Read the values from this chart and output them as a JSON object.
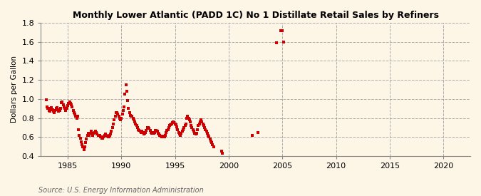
{
  "title": "Monthly Lower Atlantic (PADD 1C) No 1 Distillate Retail Sales by Refiners",
  "ylabel": "Dollars per Gallon",
  "source": "Source: U.S. Energy Information Administration",
  "background_color": "#fdf5e6",
  "plot_background_color": "#fdf5e6",
  "marker_color": "#cc0000",
  "xlim": [
    1982.5,
    2022.5
  ],
  "ylim": [
    0.4,
    1.8
  ],
  "yticks": [
    0.4,
    0.6,
    0.8,
    1.0,
    1.2,
    1.4,
    1.6,
    1.8
  ],
  "xticks": [
    1985,
    1990,
    1995,
    2000,
    2005,
    2010,
    2015,
    2020
  ],
  "data_x": [
    1983.0,
    1983.08,
    1983.17,
    1983.25,
    1983.33,
    1983.42,
    1983.5,
    1983.58,
    1983.67,
    1983.75,
    1983.83,
    1983.92,
    1984.0,
    1984.08,
    1984.17,
    1984.25,
    1984.33,
    1984.42,
    1984.5,
    1984.58,
    1984.67,
    1984.75,
    1984.83,
    1984.92,
    1985.0,
    1985.08,
    1985.17,
    1985.25,
    1985.33,
    1985.42,
    1985.5,
    1985.58,
    1985.67,
    1985.75,
    1985.83,
    1985.92,
    1986.0,
    1986.08,
    1986.17,
    1986.25,
    1986.33,
    1986.42,
    1986.5,
    1986.58,
    1986.67,
    1986.75,
    1986.83,
    1986.92,
    1987.0,
    1987.08,
    1987.17,
    1987.25,
    1987.33,
    1987.42,
    1987.5,
    1987.58,
    1987.67,
    1987.75,
    1987.83,
    1987.92,
    1988.0,
    1988.08,
    1988.17,
    1988.25,
    1988.33,
    1988.42,
    1988.5,
    1988.58,
    1988.67,
    1988.75,
    1988.83,
    1988.92,
    1989.0,
    1989.08,
    1989.17,
    1989.25,
    1989.33,
    1989.42,
    1989.5,
    1989.58,
    1989.67,
    1989.75,
    1989.83,
    1989.92,
    1990.0,
    1990.08,
    1990.17,
    1990.25,
    1990.33,
    1990.42,
    1990.5,
    1990.58,
    1990.67,
    1990.75,
    1990.83,
    1990.92,
    1991.0,
    1991.08,
    1991.17,
    1991.25,
    1991.33,
    1991.42,
    1991.5,
    1991.58,
    1991.67,
    1991.75,
    1991.83,
    1991.92,
    1992.0,
    1992.08,
    1992.17,
    1992.25,
    1992.33,
    1992.42,
    1992.5,
    1992.58,
    1992.67,
    1992.75,
    1992.83,
    1992.92,
    1993.0,
    1993.08,
    1993.17,
    1993.25,
    1993.33,
    1993.42,
    1993.5,
    1993.58,
    1993.67,
    1993.75,
    1993.83,
    1993.92,
    1994.0,
    1994.08,
    1994.17,
    1994.25,
    1994.33,
    1994.42,
    1994.5,
    1994.58,
    1994.67,
    1994.75,
    1994.83,
    1994.92,
    1995.0,
    1995.08,
    1995.17,
    1995.25,
    1995.33,
    1995.42,
    1995.5,
    1995.58,
    1995.67,
    1995.75,
    1995.83,
    1995.92,
    1996.0,
    1996.08,
    1996.17,
    1996.25,
    1996.33,
    1996.42,
    1996.5,
    1996.58,
    1996.67,
    1996.75,
    1996.83,
    1996.92,
    1997.0,
    1997.08,
    1997.17,
    1997.25,
    1997.33,
    1997.42,
    1997.5,
    1997.58,
    1997.67,
    1997.75,
    1997.83,
    1997.92,
    1998.0,
    1998.08,
    1998.17,
    1998.25,
    1998.33,
    1998.42,
    1998.5,
    1998.58,
    1999.33,
    1999.42,
    2002.17,
    2002.75,
    2004.42,
    2004.83,
    2005.0,
    2005.08
  ],
  "data_y": [
    0.99,
    0.92,
    0.9,
    0.88,
    0.87,
    0.9,
    0.91,
    0.89,
    0.87,
    0.86,
    0.88,
    0.9,
    0.91,
    0.89,
    0.87,
    0.88,
    0.9,
    0.96,
    0.97,
    0.94,
    0.92,
    0.9,
    0.88,
    0.9,
    0.93,
    0.95,
    0.97,
    0.95,
    0.94,
    0.92,
    0.88,
    0.86,
    0.84,
    0.82,
    0.8,
    0.82,
    0.68,
    0.62,
    0.59,
    0.55,
    0.52,
    0.5,
    0.47,
    0.5,
    0.54,
    0.58,
    0.62,
    0.64,
    0.62,
    0.64,
    0.66,
    0.64,
    0.62,
    0.64,
    0.65,
    0.66,
    0.65,
    0.63,
    0.62,
    0.62,
    0.62,
    0.6,
    0.59,
    0.59,
    0.6,
    0.62,
    0.63,
    0.62,
    0.61,
    0.6,
    0.6,
    0.62,
    0.63,
    0.66,
    0.7,
    0.74,
    0.78,
    0.82,
    0.86,
    0.86,
    0.84,
    0.82,
    0.8,
    0.78,
    0.8,
    0.84,
    0.88,
    0.92,
    1.05,
    1.15,
    1.08,
    0.98,
    0.9,
    0.86,
    0.83,
    0.82,
    0.82,
    0.8,
    0.78,
    0.76,
    0.74,
    0.72,
    0.7,
    0.68,
    0.67,
    0.66,
    0.65,
    0.66,
    0.65,
    0.63,
    0.64,
    0.65,
    0.67,
    0.7,
    0.7,
    0.69,
    0.67,
    0.65,
    0.64,
    0.65,
    0.64,
    0.65,
    0.67,
    0.67,
    0.66,
    0.64,
    0.63,
    0.62,
    0.61,
    0.6,
    0.6,
    0.61,
    0.6,
    0.62,
    0.65,
    0.67,
    0.68,
    0.7,
    0.72,
    0.73,
    0.74,
    0.75,
    0.76,
    0.75,
    0.74,
    0.73,
    0.71,
    0.68,
    0.65,
    0.63,
    0.62,
    0.64,
    0.66,
    0.68,
    0.7,
    0.72,
    0.74,
    0.8,
    0.82,
    0.8,
    0.78,
    0.76,
    0.72,
    0.7,
    0.68,
    0.66,
    0.64,
    0.63,
    0.64,
    0.68,
    0.72,
    0.74,
    0.76,
    0.78,
    0.76,
    0.74,
    0.72,
    0.7,
    0.68,
    0.66,
    0.64,
    0.62,
    0.6,
    0.58,
    0.56,
    0.54,
    0.52,
    0.5,
    0.45,
    0.43,
    0.62,
    0.65,
    1.59,
    1.72,
    1.72,
    1.6
  ]
}
